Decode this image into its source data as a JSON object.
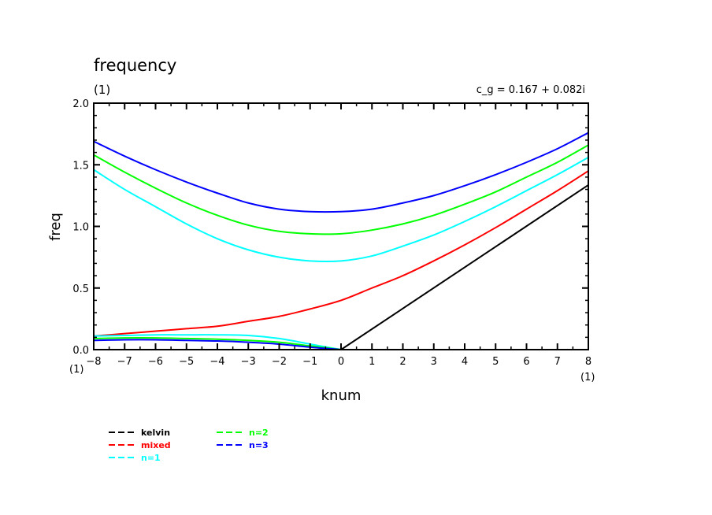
{
  "chart_data": {
    "type": "line",
    "title": "frequency",
    "title_units": "(1)",
    "annotation": "c_g =  0.167 + 0.082i",
    "xlabel": "knum",
    "ylabel": "freq",
    "x_units_left": "(1)",
    "x_units_right": "(1)",
    "xlim": [
      -8,
      8
    ],
    "ylim": [
      0,
      2
    ],
    "x_ticks": [
      "−8",
      "−7",
      "−6",
      "−5",
      "−4",
      "−3",
      "−2",
      "−1",
      "0",
      "1",
      "2",
      "3",
      "4",
      "5",
      "6",
      "7",
      "8"
    ],
    "x_tick_values": [
      -8,
      -7,
      -6,
      -5,
      -4,
      -3,
      -2,
      -1,
      0,
      1,
      2,
      3,
      4,
      5,
      6,
      7,
      8
    ],
    "y_ticks": [
      "0.0",
      "0.5",
      "1.0",
      "1.5",
      "2.0"
    ],
    "y_tick_values": [
      0,
      0.5,
      1.0,
      1.5,
      2.0
    ],
    "grid": false,
    "legend_placement": "bottom-left",
    "series": [
      {
        "name": "kelvin",
        "color": "#000000",
        "x": [
          0,
          8
        ],
        "y": [
          0,
          1.336
        ]
      },
      {
        "name": "mixed",
        "color": "#ff0000",
        "x": [
          -8,
          -7,
          -6,
          -5,
          -4,
          -3,
          -2,
          -1,
          0,
          1,
          2,
          3,
          4,
          5,
          6,
          7,
          8
        ],
        "y": [
          0.11,
          0.13,
          0.15,
          0.17,
          0.19,
          0.23,
          0.27,
          0.33,
          0.4,
          0.5,
          0.6,
          0.72,
          0.85,
          0.99,
          1.14,
          1.29,
          1.45
        ]
      },
      {
        "name": "n=1",
        "color": "#00ffff",
        "x": [
          -8,
          -7,
          -6,
          -5,
          -4,
          -3,
          -2,
          -1,
          0,
          1,
          2,
          3,
          4,
          5,
          6,
          7,
          8
        ],
        "y": [
          1.46,
          1.3,
          1.16,
          1.02,
          0.9,
          0.81,
          0.75,
          0.72,
          0.72,
          0.76,
          0.84,
          0.93,
          1.04,
          1.16,
          1.29,
          1.42,
          1.56
        ],
        "lower_x": [
          -8,
          -7,
          -6,
          -5,
          -4,
          -3,
          -2,
          -1,
          0
        ],
        "lower_y": [
          0.11,
          0.115,
          0.12,
          0.12,
          0.12,
          0.115,
          0.09,
          0.045,
          0
        ]
      },
      {
        "name": "n=2",
        "color": "#00ff00",
        "x": [
          -8,
          -7,
          -6,
          -5,
          -4,
          -3,
          -2,
          -1,
          0,
          1,
          2,
          3,
          4,
          5,
          6,
          7,
          8
        ],
        "y": [
          1.58,
          1.44,
          1.31,
          1.19,
          1.09,
          1.01,
          0.96,
          0.94,
          0.94,
          0.97,
          1.02,
          1.09,
          1.18,
          1.28,
          1.4,
          1.52,
          1.66
        ],
        "lower_x": [
          -8,
          -7,
          -6,
          -5,
          -4,
          -3,
          -2,
          -1,
          0
        ],
        "lower_y": [
          0.09,
          0.095,
          0.095,
          0.09,
          0.085,
          0.075,
          0.06,
          0.03,
          0
        ]
      },
      {
        "name": "n=3",
        "color": "#0000ff",
        "x": [
          -8,
          -7,
          -6,
          -5,
          -4,
          -3,
          -2,
          -1,
          0,
          1,
          2,
          3,
          4,
          5,
          6,
          7,
          8
        ],
        "y": [
          1.69,
          1.57,
          1.46,
          1.36,
          1.27,
          1.19,
          1.14,
          1.12,
          1.12,
          1.14,
          1.19,
          1.25,
          1.33,
          1.42,
          1.52,
          1.63,
          1.76
        ],
        "lower_x": [
          -8,
          -7,
          -6,
          -5,
          -4,
          -3,
          -2,
          -1,
          0
        ],
        "lower_y": [
          0.075,
          0.08,
          0.08,
          0.075,
          0.07,
          0.06,
          0.045,
          0.02,
          0
        ]
      }
    ],
    "legend": [
      {
        "label": "kelvin",
        "color": "#000000"
      },
      {
        "label": "mixed",
        "color": "#ff0000"
      },
      {
        "label": "n=1",
        "color": "#00ffff"
      },
      {
        "label": "n=2",
        "color": "#00ff00"
      },
      {
        "label": "n=3",
        "color": "#0000ff"
      }
    ]
  }
}
